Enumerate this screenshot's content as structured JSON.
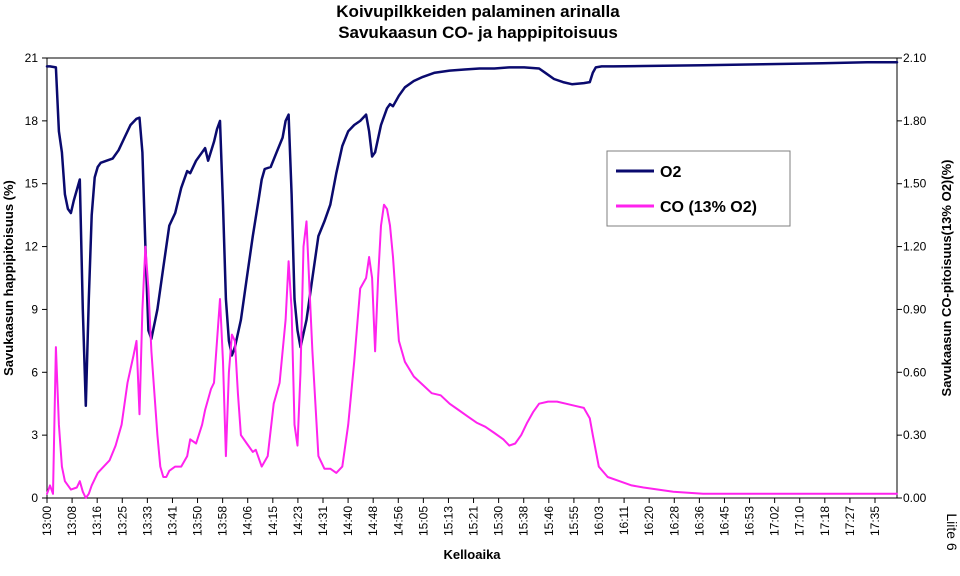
{
  "chart_data": {
    "type": "line",
    "title": "Koivupilkkeiden palaminen arinalla",
    "subtitle": "Savukaasun CO- ja happipitoisuus",
    "xlabel": "Kelloaika",
    "ylabel_left": "Savukaasun happipitoisuus (%)",
    "ylabel_right": "Savukaasun CO-pitoisuus(13% O2)(%)",
    "side_note": "Liite 6",
    "ylim_left": [
      0,
      21
    ],
    "ylim_right": [
      0,
      2.1
    ],
    "yticks_left": [
      "0",
      "3",
      "6",
      "9",
      "12",
      "15",
      "18",
      "21"
    ],
    "yticks_right": [
      "0.00",
      "0.30",
      "0.60",
      "0.90",
      "1.20",
      "1.50",
      "1.80",
      "2.10"
    ],
    "x_tick_labels": [
      "13:00",
      "13:08",
      "13:16",
      "13:25",
      "13:33",
      "13:41",
      "13:50",
      "13:58",
      "14:06",
      "14:15",
      "14:23",
      "14:31",
      "14:40",
      "14:48",
      "14:56",
      "15:05",
      "15:13",
      "15:21",
      "15:30",
      "15:38",
      "15:46",
      "15:55",
      "16:03",
      "16:11",
      "16:20",
      "16:28",
      "16:36",
      "16:45",
      "16:53",
      "17:02",
      "17:10",
      "17:18",
      "17:27",
      "17:35"
    ],
    "x_range_minutes": [
      0,
      285
    ],
    "grid": false,
    "legend_position": "upper-right",
    "series": [
      {
        "name": "O2",
        "axis": "left",
        "color": "#0a0a6e",
        "points": [
          [
            0,
            20.6
          ],
          [
            1,
            20.6
          ],
          [
            3,
            20.55
          ],
          [
            4,
            17.5
          ],
          [
            5,
            16.5
          ],
          [
            6,
            14.5
          ],
          [
            7,
            13.8
          ],
          [
            8,
            13.6
          ],
          [
            9,
            14.2
          ],
          [
            11,
            15.2
          ],
          [
            12,
            9.0
          ],
          [
            13,
            4.4
          ],
          [
            14,
            9.5
          ],
          [
            15,
            13.5
          ],
          [
            16,
            15.3
          ],
          [
            17,
            15.8
          ],
          [
            18,
            16.0
          ],
          [
            20,
            16.1
          ],
          [
            22,
            16.2
          ],
          [
            24,
            16.6
          ],
          [
            26,
            17.2
          ],
          [
            28,
            17.8
          ],
          [
            30,
            18.1
          ],
          [
            31,
            18.15
          ],
          [
            32,
            16.5
          ],
          [
            33,
            12.0
          ],
          [
            34,
            8.0
          ],
          [
            35,
            7.6
          ],
          [
            37,
            9.0
          ],
          [
            39,
            11.0
          ],
          [
            41,
            13.0
          ],
          [
            43,
            13.6
          ],
          [
            45,
            14.8
          ],
          [
            47,
            15.6
          ],
          [
            48,
            15.5
          ],
          [
            50,
            16.1
          ],
          [
            52,
            16.5
          ],
          [
            53,
            16.7
          ],
          [
            54,
            16.1
          ],
          [
            56,
            17.0
          ],
          [
            57,
            17.6
          ],
          [
            58,
            18.0
          ],
          [
            59,
            14.0
          ],
          [
            60,
            9.5
          ],
          [
            61,
            7.5
          ],
          [
            62,
            6.8
          ],
          [
            63,
            7.2
          ],
          [
            65,
            8.5
          ],
          [
            67,
            10.5
          ],
          [
            69,
            12.5
          ],
          [
            71,
            14.3
          ],
          [
            72,
            15.2
          ],
          [
            73,
            15.7
          ],
          [
            75,
            15.8
          ],
          [
            77,
            16.5
          ],
          [
            79,
            17.2
          ],
          [
            80,
            18.0
          ],
          [
            81,
            18.3
          ],
          [
            82,
            14.5
          ],
          [
            83,
            9.5
          ],
          [
            84,
            8.0
          ],
          [
            85,
            7.2
          ],
          [
            87,
            8.5
          ],
          [
            89,
            10.5
          ],
          [
            91,
            12.5
          ],
          [
            93,
            13.2
          ],
          [
            95,
            14.0
          ],
          [
            97,
            15.5
          ],
          [
            99,
            16.8
          ],
          [
            101,
            17.5
          ],
          [
            103,
            17.8
          ],
          [
            105,
            18.0
          ],
          [
            107,
            18.3
          ],
          [
            108,
            17.5
          ],
          [
            109,
            16.3
          ],
          [
            110,
            16.5
          ],
          [
            112,
            17.8
          ],
          [
            114,
            18.6
          ],
          [
            115,
            18.8
          ],
          [
            116,
            18.7
          ],
          [
            118,
            19.2
          ],
          [
            120,
            19.6
          ],
          [
            123,
            19.9
          ],
          [
            126,
            20.1
          ],
          [
            130,
            20.3
          ],
          [
            135,
            20.4
          ],
          [
            140,
            20.45
          ],
          [
            145,
            20.5
          ],
          [
            150,
            20.5
          ],
          [
            155,
            20.55
          ],
          [
            160,
            20.55
          ],
          [
            165,
            20.5
          ],
          [
            167,
            20.3
          ],
          [
            170,
            20.0
          ],
          [
            173,
            19.85
          ],
          [
            176,
            19.75
          ],
          [
            180,
            19.8
          ],
          [
            182,
            19.85
          ],
          [
            183,
            20.3
          ],
          [
            184,
            20.55
          ],
          [
            186,
            20.6
          ],
          [
            190,
            20.6
          ],
          [
            200,
            20.62
          ],
          [
            220,
            20.65
          ],
          [
            240,
            20.7
          ],
          [
            260,
            20.75
          ],
          [
            275,
            20.8
          ],
          [
            285,
            20.8
          ]
        ]
      },
      {
        "name": "CO (13% O2)",
        "axis": "right",
        "color": "#ff22ee",
        "points": [
          [
            0,
            0.02
          ],
          [
            1,
            0.06
          ],
          [
            2,
            0.02
          ],
          [
            3,
            0.72
          ],
          [
            4,
            0.35
          ],
          [
            5,
            0.15
          ],
          [
            6,
            0.08
          ],
          [
            8,
            0.04
          ],
          [
            10,
            0.05
          ],
          [
            11,
            0.08
          ],
          [
            12,
            0.03
          ],
          [
            13,
            0.0
          ],
          [
            14,
            0.02
          ],
          [
            15,
            0.06
          ],
          [
            17,
            0.12
          ],
          [
            19,
            0.15
          ],
          [
            21,
            0.18
          ],
          [
            23,
            0.25
          ],
          [
            25,
            0.35
          ],
          [
            27,
            0.55
          ],
          [
            29,
            0.68
          ],
          [
            30,
            0.75
          ],
          [
            31,
            0.4
          ],
          [
            32,
            0.9
          ],
          [
            33,
            1.2
          ],
          [
            34,
            1.0
          ],
          [
            35,
            0.7
          ],
          [
            36,
            0.5
          ],
          [
            37,
            0.3
          ],
          [
            38,
            0.15
          ],
          [
            39,
            0.1
          ],
          [
            40,
            0.1
          ],
          [
            41,
            0.13
          ],
          [
            43,
            0.15
          ],
          [
            45,
            0.15
          ],
          [
            47,
            0.2
          ],
          [
            48,
            0.28
          ],
          [
            50,
            0.26
          ],
          [
            52,
            0.35
          ],
          [
            53,
            0.42
          ],
          [
            55,
            0.52
          ],
          [
            56,
            0.55
          ],
          [
            57,
            0.75
          ],
          [
            58,
            0.95
          ],
          [
            59,
            0.65
          ],
          [
            60,
            0.2
          ],
          [
            61,
            0.6
          ],
          [
            62,
            0.78
          ],
          [
            63,
            0.75
          ],
          [
            64,
            0.5
          ],
          [
            65,
            0.3
          ],
          [
            67,
            0.26
          ],
          [
            69,
            0.22
          ],
          [
            70,
            0.23
          ],
          [
            72,
            0.15
          ],
          [
            74,
            0.2
          ],
          [
            76,
            0.45
          ],
          [
            78,
            0.55
          ],
          [
            80,
            0.85
          ],
          [
            81,
            1.13
          ],
          [
            82,
            0.9
          ],
          [
            83,
            0.35
          ],
          [
            84,
            0.25
          ],
          [
            85,
            0.6
          ],
          [
            86,
            1.2
          ],
          [
            87,
            1.32
          ],
          [
            88,
            1.0
          ],
          [
            89,
            0.7
          ],
          [
            90,
            0.45
          ],
          [
            91,
            0.2
          ],
          [
            93,
            0.14
          ],
          [
            95,
            0.14
          ],
          [
            97,
            0.12
          ],
          [
            99,
            0.15
          ],
          [
            101,
            0.35
          ],
          [
            103,
            0.65
          ],
          [
            105,
            1.0
          ],
          [
            107,
            1.05
          ],
          [
            108,
            1.15
          ],
          [
            109,
            1.05
          ],
          [
            110,
            0.7
          ],
          [
            111,
            1.05
          ],
          [
            112,
            1.3
          ],
          [
            113,
            1.4
          ],
          [
            114,
            1.38
          ],
          [
            115,
            1.3
          ],
          [
            116,
            1.15
          ],
          [
            117,
            0.95
          ],
          [
            118,
            0.75
          ],
          [
            120,
            0.65
          ],
          [
            123,
            0.58
          ],
          [
            126,
            0.54
          ],
          [
            129,
            0.5
          ],
          [
            132,
            0.49
          ],
          [
            135,
            0.45
          ],
          [
            138,
            0.42
          ],
          [
            141,
            0.39
          ],
          [
            144,
            0.36
          ],
          [
            147,
            0.34
          ],
          [
            150,
            0.31
          ],
          [
            153,
            0.28
          ],
          [
            155,
            0.25
          ],
          [
            157,
            0.26
          ],
          [
            159,
            0.3
          ],
          [
            161,
            0.36
          ],
          [
            163,
            0.41
          ],
          [
            165,
            0.45
          ],
          [
            168,
            0.46
          ],
          [
            171,
            0.46
          ],
          [
            174,
            0.45
          ],
          [
            177,
            0.44
          ],
          [
            180,
            0.43
          ],
          [
            182,
            0.38
          ],
          [
            183,
            0.3
          ],
          [
            185,
            0.15
          ],
          [
            188,
            0.1
          ],
          [
            192,
            0.08
          ],
          [
            196,
            0.06
          ],
          [
            200,
            0.05
          ],
          [
            205,
            0.04
          ],
          [
            210,
            0.03
          ],
          [
            220,
            0.02
          ],
          [
            230,
            0.02
          ],
          [
            240,
            0.02
          ],
          [
            250,
            0.02
          ],
          [
            260,
            0.02
          ],
          [
            270,
            0.02
          ],
          [
            285,
            0.02
          ]
        ]
      }
    ]
  }
}
